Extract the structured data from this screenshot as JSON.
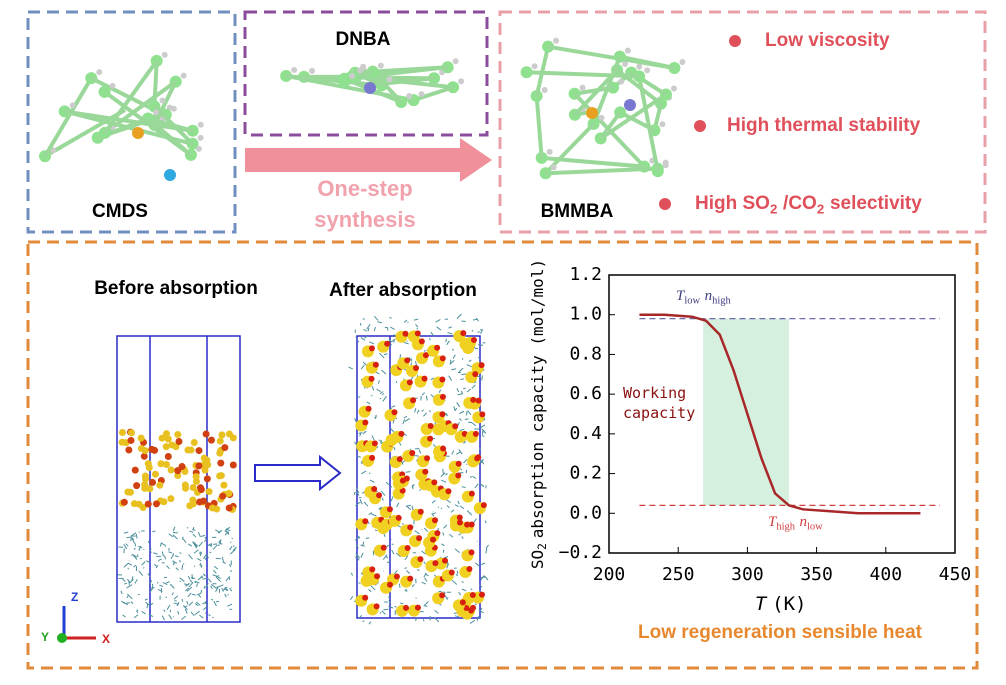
{
  "molecules": {
    "cmds": "CMDS",
    "dnba": "DNBA",
    "bmmba": "BMMBA"
  },
  "arrow_label": [
    "One-step",
    "synthesis"
  ],
  "properties": [
    [
      {
        "text": "Low viscosity"
      }
    ],
    [
      {
        "text": "High thermal stability"
      }
    ],
    [
      {
        "text": "High SO"
      },
      {
        "text": "2",
        "sub": true
      },
      {
        "text": "/CO"
      },
      {
        "text": "2",
        "sub": true
      },
      {
        "text": "selectivity"
      }
    ]
  ],
  "simulation": {
    "before": "Before absorption",
    "after": "After absorption",
    "axes": [
      "Z",
      "Y",
      "X"
    ]
  },
  "footer": "Low regeneration sensible heat",
  "chart_data": {
    "type": "line",
    "x_label": [
      {
        "text": "T",
        "italic": true
      },
      {
        "text": "(K)"
      }
    ],
    "y_label": [
      {
        "text": "SO"
      },
      {
        "text": "2",
        "sub": true
      },
      {
        "text": "absorption capacity (mol/mol)"
      }
    ],
    "x": [
      222,
      240,
      260,
      270,
      280,
      290,
      300,
      310,
      320,
      330,
      340,
      360,
      380,
      400,
      425
    ],
    "series": [
      {
        "color": "#a8282a",
        "values": [
          1.0,
          1.0,
          0.99,
          0.97,
          0.9,
          0.72,
          0.5,
          0.28,
          0.1,
          0.04,
          0.02,
          0.01,
          0.0,
          0.0,
          0.0
        ]
      }
    ],
    "xlim": [
      200,
      450
    ],
    "ylim": [
      -0.2,
      1.2
    ],
    "xticks": [
      200,
      250,
      300,
      350,
      400,
      450
    ],
    "yticks": [
      {
        "value": 1.2,
        "label": "1.2"
      },
      {
        "value": 1.0,
        "label": "1.0"
      },
      {
        "value": 0.8,
        "label": "0.8"
      },
      {
        "value": 0.6,
        "label": "0.6"
      },
      {
        "value": 0.4,
        "label": "0.4"
      },
      {
        "value": 0.2,
        "label": "0.2"
      },
      {
        "value": 0.0,
        "label": "0.0"
      },
      {
        "value": -0.2,
        "label": "−0.2"
      }
    ],
    "hlines": [
      {
        "value": 0.98,
        "color": "#5a5aa0"
      },
      {
        "value": 0.04,
        "color": "#d04040"
      }
    ],
    "shaded": {
      "x": [
        268,
        330
      ],
      "y": [
        0.04,
        0.98
      ],
      "color": "#d6f0df"
    },
    "annotations": [
      {
        "color": "#404080",
        "runs": [
          {
            "text": "T",
            "italic": true
          },
          {
            "text": "low",
            "sub": true
          },
          {
            "text": "n",
            "italic": true
          },
          {
            "text": "high",
            "sub": true
          }
        ]
      },
      {
        "color": "#8a1010",
        "runs": [
          {
            "text": "Working"
          }
        ]
      },
      {
        "color": "#8a1010",
        "runs": [
          {
            "text": "capacity"
          }
        ]
      },
      {
        "color": "#d04040",
        "runs": [
          {
            "text": "T",
            "italic": true
          },
          {
            "text": "high",
            "sub": true
          },
          {
            "text": "n",
            "italic": true
          },
          {
            "text": "low",
            "sub": true
          }
        ]
      }
    ]
  }
}
